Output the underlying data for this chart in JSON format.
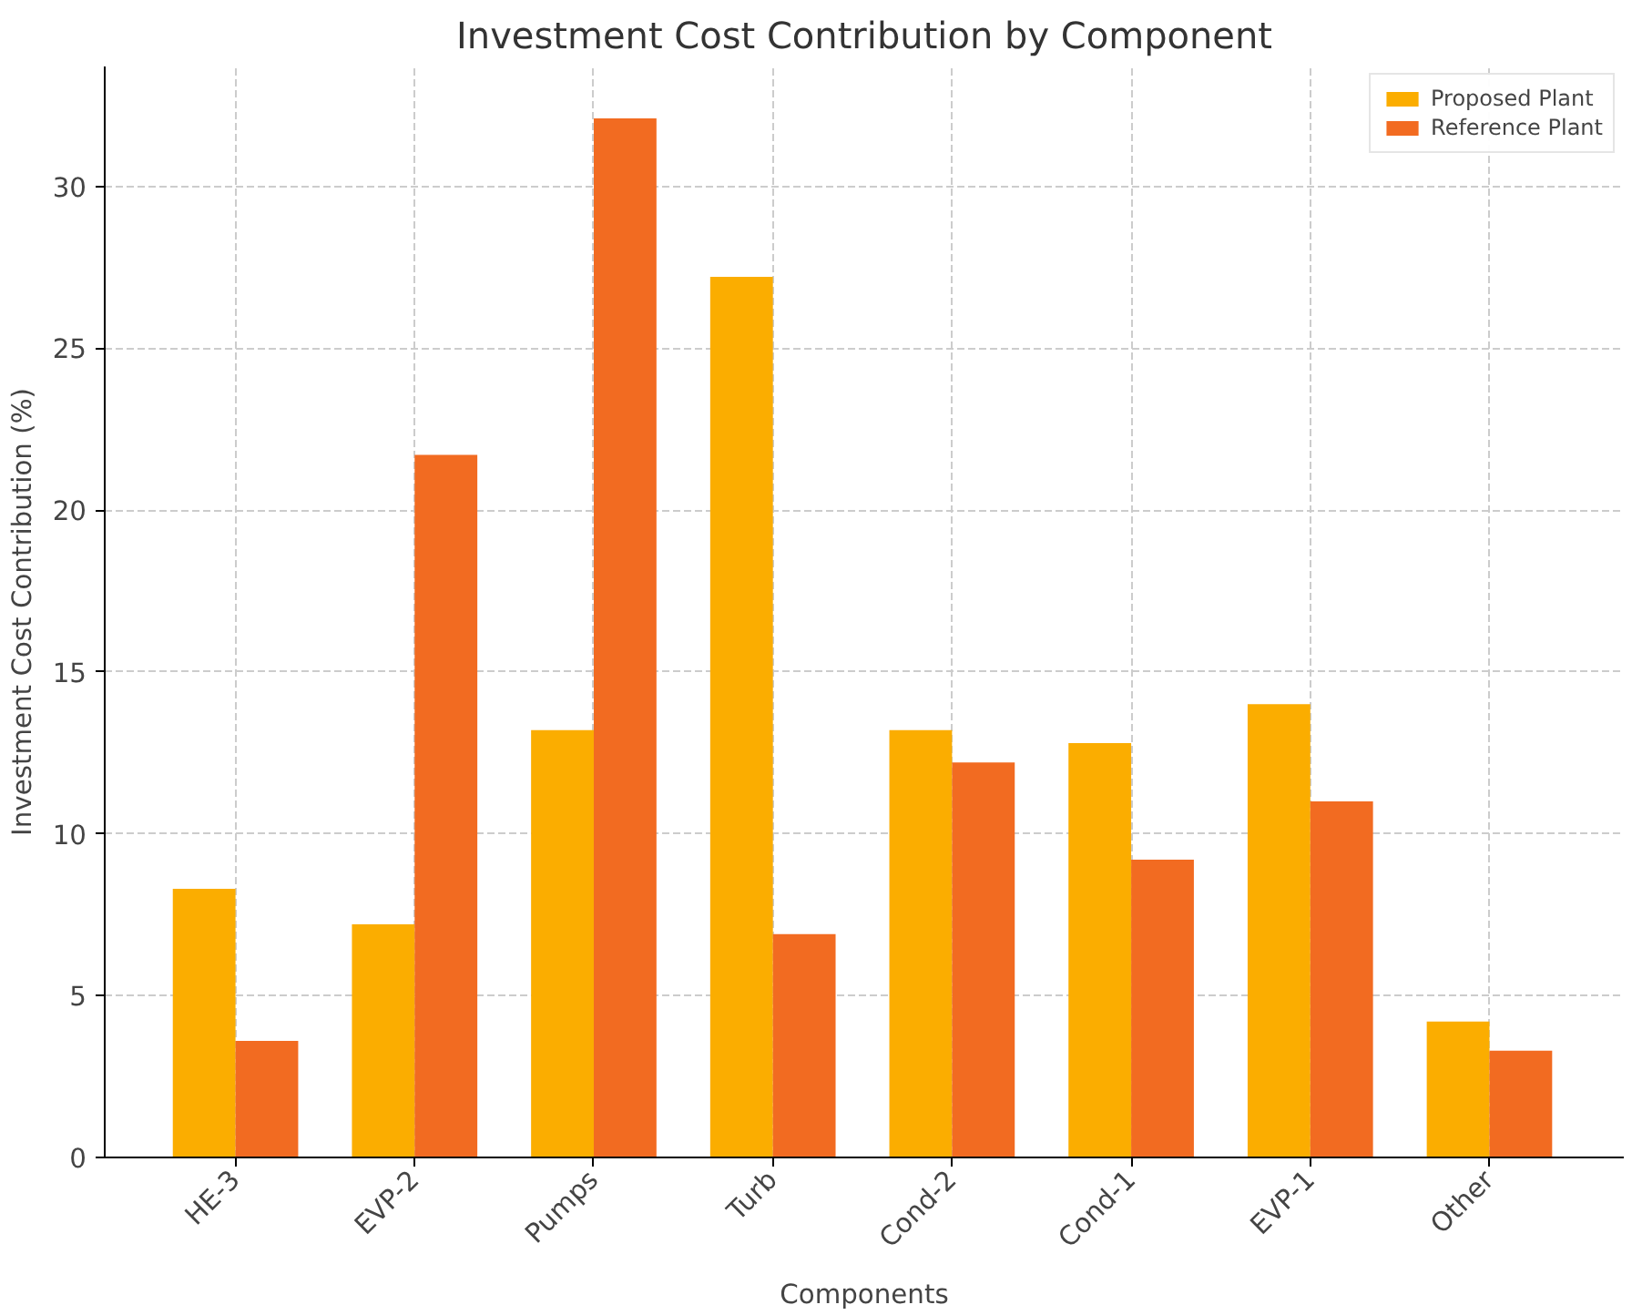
{
  "chart_data": {
    "type": "bar",
    "title": "Investment Cost Contribution by Component",
    "xlabel": "Components",
    "ylabel": "Investment Cost Contribution (%)",
    "categories": [
      "HE-3",
      "EVP-2",
      "Pumps",
      "Turb",
      "Cond-2",
      "Cond-1",
      "EVP-1",
      "Other"
    ],
    "series": [
      {
        "name": "Proposed Plant",
        "color": "#fbad00",
        "values": [
          8.3,
          7.2,
          13.2,
          27.2,
          13.2,
          12.8,
          14.0,
          4.2
        ]
      },
      {
        "name": "Reference Plant",
        "color": "#f26b21",
        "values": [
          3.6,
          21.7,
          32.1,
          6.9,
          12.2,
          9.2,
          11.0,
          3.3
        ]
      }
    ],
    "ylim": [
      0,
      33.7
    ],
    "yticks": [
      0,
      5,
      10,
      15,
      20,
      25,
      30
    ],
    "grid": true,
    "legend": "top right"
  }
}
